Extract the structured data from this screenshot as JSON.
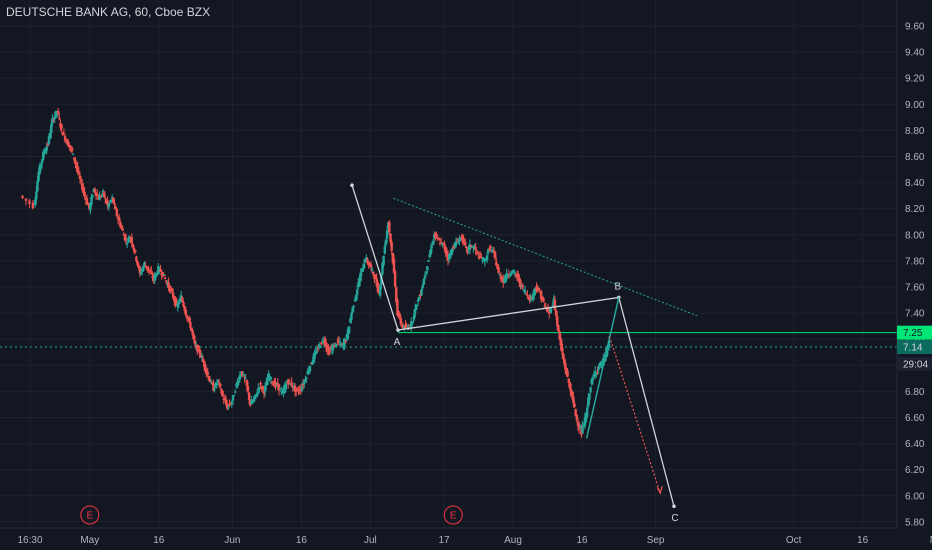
{
  "header": {
    "title": "DEUTSCHE BANK AG, 60, Cboe BZX"
  },
  "colors": {
    "background": "#131722",
    "up_candle": "#26a69a",
    "down_candle": "#ef5350",
    "axis_text": "#b2b5be",
    "grid": "#1e222d",
    "price_line_green": "#00e676",
    "pattern_white": "#d1d4dc",
    "trend_teal": "#26a69a",
    "event_marker": "#f23645"
  },
  "chart_data": {
    "type": "candlestick",
    "title": "DEUTSCHE BANK AG, 60, Cboe BZX",
    "y_axis": {
      "ticks": [
        "9.60",
        "9.40",
        "9.20",
        "9.00",
        "8.80",
        "8.60",
        "8.40",
        "8.20",
        "8.00",
        "7.80",
        "7.60",
        "7.40",
        "7.20",
        "7.00",
        "6.80",
        "6.60",
        "6.40",
        "6.20",
        "6.00",
        "5.80"
      ],
      "range": [
        5.78,
        9.72
      ]
    },
    "x_axis": {
      "ticks": [
        {
          "label": "16:30",
          "day": 0
        },
        {
          "label": "May",
          "day": 13
        },
        {
          "label": "16",
          "day": 28
        },
        {
          "label": "Jun",
          "day": 44
        },
        {
          "label": "16",
          "day": 59
        },
        {
          "label": "Jul",
          "day": 74
        },
        {
          "label": "17",
          "day": 90
        },
        {
          "label": "Aug",
          "day": 105
        },
        {
          "label": "16",
          "day": 120
        },
        {
          "label": "Sep",
          "day": 136
        },
        {
          "label": "Oct",
          "day": 166
        },
        {
          "label": "16",
          "day": 181
        },
        {
          "label": "No",
          "day": 197
        }
      ]
    },
    "price_labels": [
      {
        "value": "7.25",
        "price": 7.25,
        "style": "green"
      },
      {
        "value": "7.14",
        "price": 7.14,
        "style": "teal"
      },
      {
        "value": "29:04",
        "price": 7.01,
        "style": "dark"
      }
    ],
    "series": [
      {
        "points": [
          [
            -2,
            8.3
          ],
          [
            1,
            8.22
          ],
          [
            2,
            8.48
          ],
          [
            3,
            8.62
          ],
          [
            4,
            8.7
          ],
          [
            5,
            8.88
          ],
          [
            6,
            8.95
          ],
          [
            7,
            8.8
          ],
          [
            8,
            8.72
          ],
          [
            9,
            8.66
          ],
          [
            10,
            8.55
          ],
          [
            11,
            8.42
          ],
          [
            12,
            8.3
          ],
          [
            13,
            8.2
          ],
          [
            14,
            8.35
          ],
          [
            15,
            8.28
          ],
          [
            16,
            8.32
          ],
          [
            17,
            8.22
          ],
          [
            18,
            8.28
          ],
          [
            19,
            8.15
          ],
          [
            20,
            8.05
          ],
          [
            21,
            7.95
          ],
          [
            22,
            7.98
          ],
          [
            23,
            7.85
          ],
          [
            24,
            7.7
          ],
          [
            25,
            7.78
          ],
          [
            26,
            7.72
          ],
          [
            27,
            7.66
          ],
          [
            28,
            7.74
          ],
          [
            29,
            7.7
          ],
          [
            30,
            7.62
          ],
          [
            31,
            7.55
          ],
          [
            32,
            7.45
          ],
          [
            33,
            7.52
          ],
          [
            34,
            7.4
          ],
          [
            35,
            7.3
          ],
          [
            36,
            7.15
          ],
          [
            37,
            7.1
          ],
          [
            38,
            7.0
          ],
          [
            39,
            6.9
          ],
          [
            40,
            6.82
          ],
          [
            41,
            6.88
          ],
          [
            42,
            6.76
          ],
          [
            43,
            6.68
          ],
          [
            44,
            6.72
          ],
          [
            45,
            6.85
          ],
          [
            46,
            6.95
          ],
          [
            47,
            6.88
          ],
          [
            48,
            6.7
          ],
          [
            49,
            6.75
          ],
          [
            50,
            6.85
          ],
          [
            51,
            6.8
          ],
          [
            52,
            6.92
          ],
          [
            53,
            6.86
          ],
          [
            54,
            6.84
          ],
          [
            55,
            6.78
          ],
          [
            56,
            6.88
          ],
          [
            57,
            6.85
          ],
          [
            58,
            6.8
          ],
          [
            59,
            6.82
          ],
          [
            60,
            6.9
          ],
          [
            61,
            7.0
          ],
          [
            62,
            7.08
          ],
          [
            63,
            7.15
          ],
          [
            64,
            7.2
          ],
          [
            65,
            7.1
          ],
          [
            66,
            7.14
          ],
          [
            67,
            7.18
          ],
          [
            68,
            7.15
          ],
          [
            69,
            7.22
          ],
          [
            70,
            7.4
          ],
          [
            71,
            7.55
          ],
          [
            72,
            7.7
          ],
          [
            73,
            7.82
          ],
          [
            74,
            7.76
          ],
          [
            75,
            7.68
          ],
          [
            76,
            7.55
          ],
          [
            77,
            7.85
          ],
          [
            78,
            8.1
          ],
          [
            79,
            7.8
          ],
          [
            80,
            7.4
          ],
          [
            81,
            7.3
          ],
          [
            82,
            7.28
          ],
          [
            83,
            7.32
          ],
          [
            84,
            7.45
          ],
          [
            85,
            7.55
          ],
          [
            86,
            7.7
          ],
          [
            87,
            7.85
          ],
          [
            88,
            8.0
          ],
          [
            89,
            7.95
          ],
          [
            90,
            7.92
          ],
          [
            91,
            7.82
          ],
          [
            92,
            7.9
          ],
          [
            93,
            7.95
          ],
          [
            94,
            7.98
          ],
          [
            95,
            7.88
          ],
          [
            96,
            7.92
          ],
          [
            97,
            7.88
          ],
          [
            98,
            7.82
          ],
          [
            99,
            7.8
          ],
          [
            100,
            7.9
          ],
          [
            101,
            7.85
          ],
          [
            102,
            7.7
          ],
          [
            103,
            7.65
          ],
          [
            104,
            7.7
          ],
          [
            105,
            7.72
          ],
          [
            106,
            7.68
          ],
          [
            107,
            7.6
          ],
          [
            108,
            7.55
          ],
          [
            109,
            7.5
          ],
          [
            110,
            7.6
          ],
          [
            111,
            7.55
          ],
          [
            112,
            7.45
          ],
          [
            113,
            7.4
          ],
          [
            114,
            7.5
          ],
          [
            115,
            7.25
          ],
          [
            116,
            7.05
          ],
          [
            117,
            6.9
          ],
          [
            118,
            6.75
          ],
          [
            119,
            6.58
          ],
          [
            120,
            6.48
          ],
          [
            121,
            6.62
          ],
          [
            122,
            6.85
          ],
          [
            123,
            6.95
          ],
          [
            124,
            7.0
          ],
          [
            125,
            7.05
          ],
          [
            126,
            7.18
          ]
        ]
      }
    ],
    "drawings": {
      "abc_white": [
        {
          "label": "",
          "day": 70,
          "price": 8.38
        },
        {
          "label": "A",
          "day": 80,
          "price": 7.27
        },
        {
          "label": "B",
          "day": 128,
          "price": 7.52
        },
        {
          "label": "C",
          "day": 140,
          "price": 5.92
        }
      ],
      "green_wave": [
        {
          "day": 121,
          "price": 6.44
        },
        {
          "day": 128,
          "price": 7.52
        }
      ],
      "red_projection": [
        {
          "day": 126,
          "price": 7.22
        },
        {
          "day": 137,
          "price": 6.02
        }
      ],
      "teal_trendline": [
        {
          "day": 79,
          "price": 8.28
        },
        {
          "day": 145,
          "price": 7.38
        }
      ],
      "horizontal_lines": [
        {
          "price": 7.25,
          "style": "green-solid"
        },
        {
          "price": 7.14,
          "style": "teal-dotted"
        }
      ],
      "event_markers": [
        {
          "label": "E",
          "day": 13
        },
        {
          "label": "E",
          "day": 92
        }
      ]
    }
  }
}
